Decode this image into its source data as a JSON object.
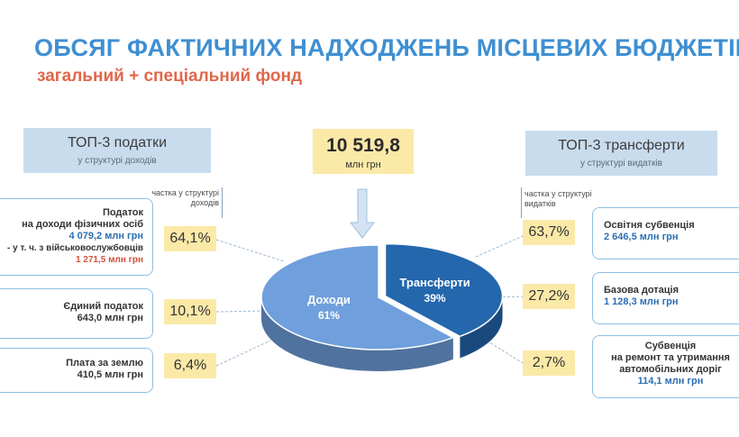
{
  "header": {
    "title": "ОБСЯГ ФАКТИЧНИХ НАДХОДЖЕНЬ МІСЦЕВИХ БЮДЖЕТІВ",
    "subtitle": "загальний + спеціальний фонд"
  },
  "total": {
    "value": "10 519,8",
    "unit": "млн грн"
  },
  "taxes": {
    "heading": "ТОП-3 податки",
    "subheading": "у структурі доходів",
    "share_note_line1": "частка у структурі",
    "share_note_line2": "доходів",
    "items": [
      {
        "name_line1": "Податок",
        "name_line2": "на доходи фізичних осіб",
        "amount": "4 079,2 млн грн",
        "sub_label": "- у т. ч. з військовослужбовців",
        "sub_amount": "1 271,5 млн грн",
        "share": "64,1%"
      },
      {
        "name_line1": "Єдиний податок",
        "amount": "643,0 млн грн",
        "share": "10,1%"
      },
      {
        "name_line1": "Плата за землю",
        "amount": "410,5 млн грн",
        "share": "6,4%"
      }
    ]
  },
  "transfers": {
    "heading": "ТОП-3 трансферти",
    "subheading": "у структурі видатків",
    "share_note_line1": "частка у структурі",
    "share_note_line2": "видатків",
    "items": [
      {
        "name_line1": "Освітня субвенція",
        "amount": "2 646,5 млн грн",
        "share": "63,7%"
      },
      {
        "name_line1": "Базова дотація",
        "amount": "1 128,3 млн грн",
        "share": "27,2%"
      },
      {
        "name_line1": "Субвенція",
        "name_line2": "на ремонт та утримання",
        "name_line3": "автомобільних доріг",
        "amount": "114,1 млн грн",
        "share": "2,7%"
      }
    ]
  },
  "chart_data": {
    "type": "pie",
    "title": "",
    "series": [
      {
        "name": "Доходи",
        "label": "61%",
        "value": 61
      },
      {
        "name": "Трансферти",
        "label": "39%",
        "value": 39
      }
    ],
    "colors": {
      "Доходи": "#6f9fdc",
      "Трансферти": "#2467ad"
    }
  },
  "colors": {
    "title": "#3f8fd2",
    "subtitle": "#e0674a",
    "header_box": "#c8dcee",
    "highlight_box": "#fbe9a8",
    "card_border": "#8dbfe3"
  }
}
